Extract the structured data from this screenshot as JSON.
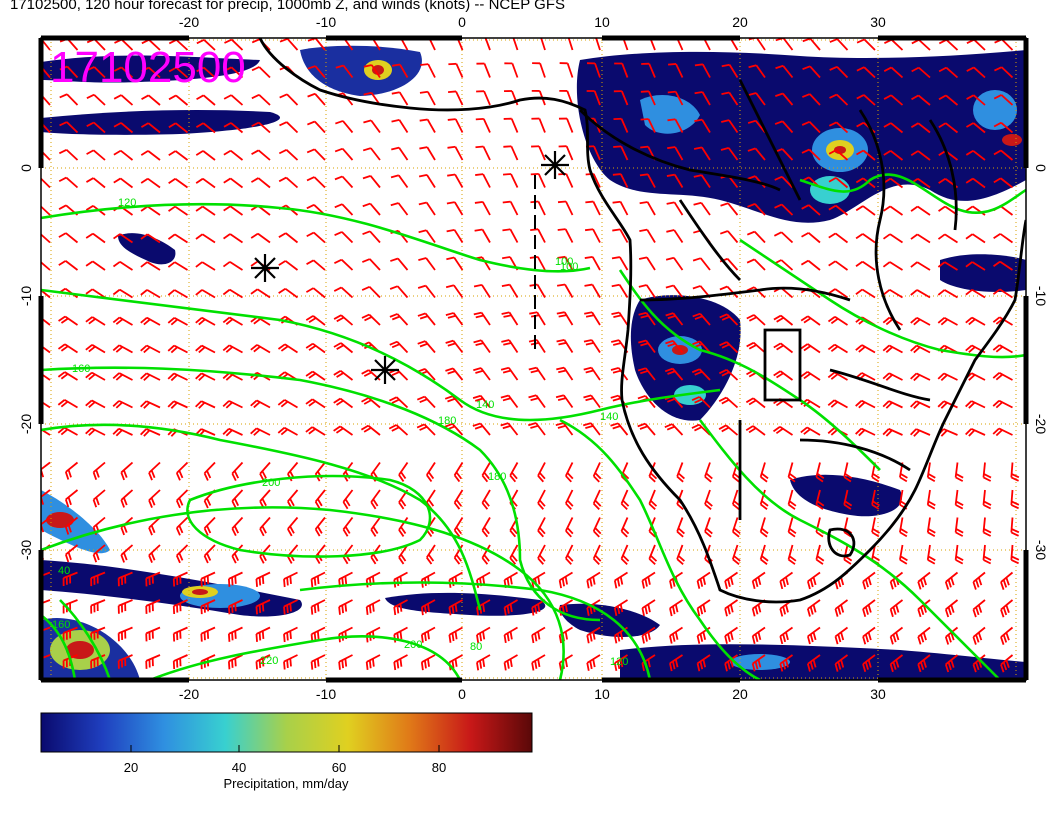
{
  "title": "17102500, 120 hour forecast for precip, 1000mb Z, and winds (knots) -- NCEP GFS",
  "stamp": "17102500",
  "stamp_color": "#ff00ff",
  "axes": {
    "lon_ticks": [
      "-20",
      "-10",
      "0",
      "10",
      "20",
      "30"
    ],
    "lat_ticks": [
      "0",
      "-10",
      "-20",
      "-30"
    ]
  },
  "colorbar": {
    "label": "Precipitation, mm/day",
    "ticks": [
      "20",
      "40",
      "60",
      "80"
    ],
    "colors": [
      "#0a0a6e",
      "#1f3fbf",
      "#2f8fe0",
      "#38d0d0",
      "#a8d04a",
      "#e0d020",
      "#e07a18",
      "#c81818",
      "#5a0808"
    ]
  },
  "contour_labels": [
    "120",
    "100",
    "160",
    "140",
    "180",
    "200",
    "220",
    "200",
    "180",
    "160",
    "140",
    "120",
    "100",
    "80",
    "40"
  ],
  "colors": {
    "wind_barbs": "#ff0000",
    "contours": "#00e000",
    "coastline": "#000000",
    "grid": "#d8a000"
  },
  "markers": [
    "storm-center-asterisk",
    "storm-center-asterisk",
    "storm-center-asterisk"
  ]
}
